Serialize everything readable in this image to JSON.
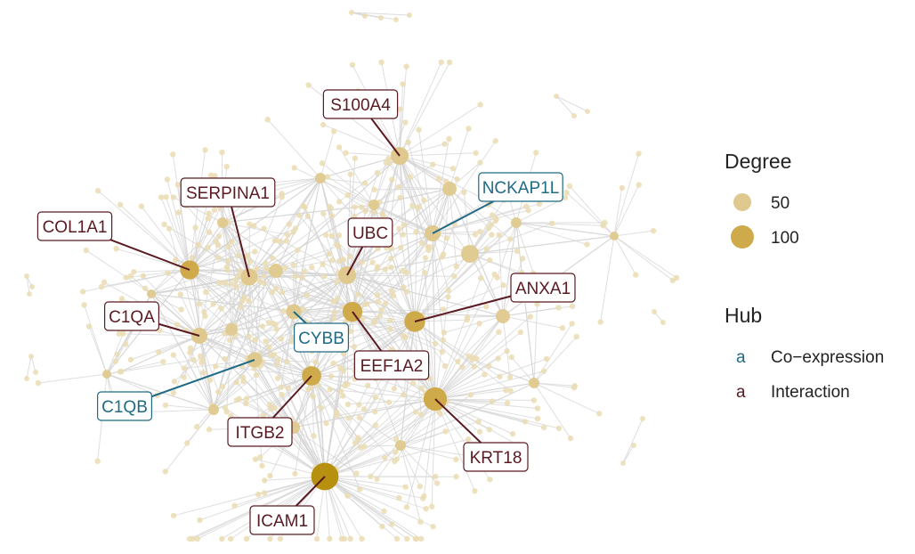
{
  "colors": {
    "edge": "#d4d4d4",
    "leaf_node": "#eadcb3",
    "small_hub": "#dfc98e",
    "mid_hub": "#cfaa4a",
    "big_hub": "#b8900f",
    "coexpression": "#1f6a85",
    "interaction": "#5a1a22"
  },
  "hubs": [
    {
      "label": "S100A4",
      "category": "interaction",
      "degree": 55
    },
    {
      "label": "NCKAP1L",
      "category": "coexpression",
      "degree": 45
    },
    {
      "label": "SERPINA1",
      "category": "interaction",
      "degree": 50
    },
    {
      "label": "COL1A1",
      "category": "interaction",
      "degree": 62
    },
    {
      "label": "UBC",
      "category": "interaction",
      "degree": 55
    },
    {
      "label": "ANXA1",
      "category": "interaction",
      "degree": 75
    },
    {
      "label": "C1QA",
      "category": "interaction",
      "degree": 45
    },
    {
      "label": "CYBB",
      "category": "coexpression",
      "degree": 40
    },
    {
      "label": "EEF1A2",
      "category": "interaction",
      "degree": 68
    },
    {
      "label": "C1QB",
      "category": "coexpression",
      "degree": 40
    },
    {
      "label": "ITGB2",
      "category": "interaction",
      "degree": 65
    },
    {
      "label": "KRT18",
      "category": "interaction",
      "degree": 95
    },
    {
      "label": "ICAM1",
      "category": "interaction",
      "degree": 130
    }
  ],
  "legend": {
    "degree_title": "Degree",
    "degree_items": [
      {
        "label": "50",
        "degree": 50
      },
      {
        "label": "100",
        "degree": 100
      }
    ],
    "hub_title": "Hub",
    "hub_items": [
      {
        "glyph": "a",
        "label": "Co−expression",
        "category": "coexpression"
      },
      {
        "glyph": "a",
        "label": "Interaction",
        "category": "interaction"
      }
    ]
  }
}
